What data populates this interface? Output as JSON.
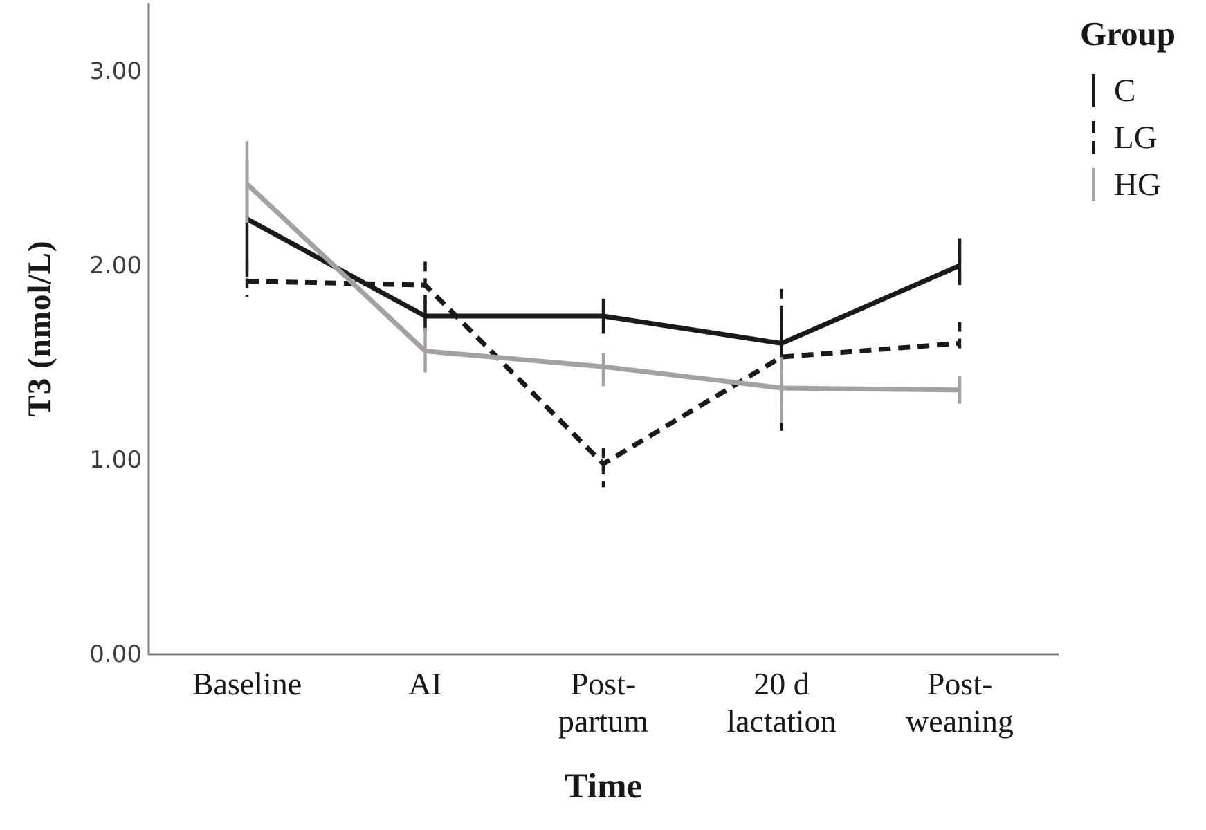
{
  "chart_data": {
    "type": "line",
    "title": "",
    "xlabel": "Time",
    "ylabel": "T3 (nmol/L)",
    "legend_title": "Group",
    "legend_position": "top-right",
    "grid": false,
    "ylim": [
      0,
      3.35
    ],
    "y_ticks": [
      {
        "value": 0,
        "label": "0.00"
      },
      {
        "value": 1,
        "label": "1.00"
      },
      {
        "value": 2,
        "label": "2.00"
      },
      {
        "value": 3,
        "label": "3.00"
      }
    ],
    "categories": [
      {
        "label": "Baseline",
        "lines": [
          "Baseline"
        ]
      },
      {
        "label": "AI",
        "lines": [
          "AI"
        ]
      },
      {
        "label": "Post-partum",
        "lines": [
          "Post-",
          "partum"
        ]
      },
      {
        "label": "20 d lactation",
        "lines": [
          "20 d",
          "lactation"
        ]
      },
      {
        "label": "Post-weaning",
        "lines": [
          "Post-",
          "weaning"
        ]
      }
    ],
    "series": [
      {
        "name": "C",
        "line_style": "solid",
        "color": "#1a1a1a",
        "values": [
          2.24,
          1.74,
          1.74,
          1.6,
          2.0
        ],
        "err_low": [
          1.94,
          1.66,
          1.65,
          1.52,
          1.9
        ],
        "err_high": [
          2.54,
          1.82,
          1.83,
          1.76,
          2.14
        ]
      },
      {
        "name": "LG",
        "line_style": "dashed",
        "color": "#1a1a1a",
        "values": [
          1.92,
          1.9,
          0.98,
          1.53,
          1.6
        ],
        "err_low": [
          1.84,
          1.78,
          0.86,
          1.15,
          1.54
        ],
        "err_high": [
          2.02,
          2.02,
          1.06,
          1.88,
          1.71
        ]
      },
      {
        "name": "HG",
        "line_style": "solid",
        "color": "#a5a1a0",
        "values": [
          2.42,
          1.56,
          1.48,
          1.37,
          1.36
        ],
        "err_low": [
          2.22,
          1.45,
          1.38,
          1.19,
          1.29
        ],
        "err_high": [
          2.64,
          1.68,
          1.55,
          1.53,
          1.43
        ]
      }
    ],
    "colors": {
      "axis": "#7c7c7c",
      "tick_text": "#3d3d3d",
      "label_text": "#181818"
    }
  }
}
